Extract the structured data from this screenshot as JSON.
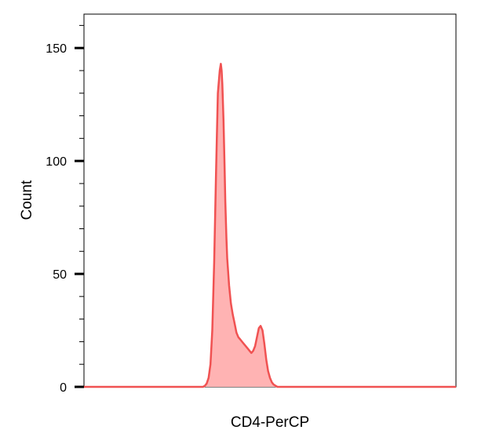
{
  "chart_data": {
    "type": "area",
    "title": "",
    "xlabel": "CD4-PerCP",
    "ylabel": "Count",
    "x_tick_labels_shown": false,
    "xlim": [
      0,
      1000
    ],
    "ylim": [
      0,
      165
    ],
    "y_major_ticks": [
      0,
      50,
      100,
      150
    ],
    "y_minor_step": 10,
    "grid": false,
    "legend": "none",
    "series": [
      {
        "color": "#f05252",
        "fill_color": "#ffb3b3",
        "x": [
          0,
          320,
          325,
          330,
          335,
          340,
          345,
          350,
          355,
          360,
          365,
          368,
          370,
          372,
          375,
          378,
          380,
          383,
          385,
          390,
          395,
          400,
          405,
          410,
          415,
          420,
          425,
          430,
          435,
          440,
          445,
          450,
          455,
          460,
          465,
          470,
          475,
          480,
          485,
          490,
          495,
          500,
          505,
          510,
          515,
          520,
          525,
          530,
          535,
          540,
          545,
          550,
          560,
          1000
        ],
        "y": [
          0,
          0,
          0.5,
          1.5,
          4,
          10,
          25,
          55,
          95,
          130,
          140,
          143,
          140,
          134,
          118,
          97,
          82,
          66,
          57,
          45,
          37,
          32,
          28,
          24,
          22,
          21,
          20,
          19,
          18,
          17,
          16,
          15,
          16,
          18,
          22,
          26,
          27,
          25,
          19,
          12,
          7,
          4,
          2,
          1,
          0.5,
          0,
          0,
          0,
          0,
          0,
          0,
          0,
          0,
          0
        ]
      }
    ]
  }
}
